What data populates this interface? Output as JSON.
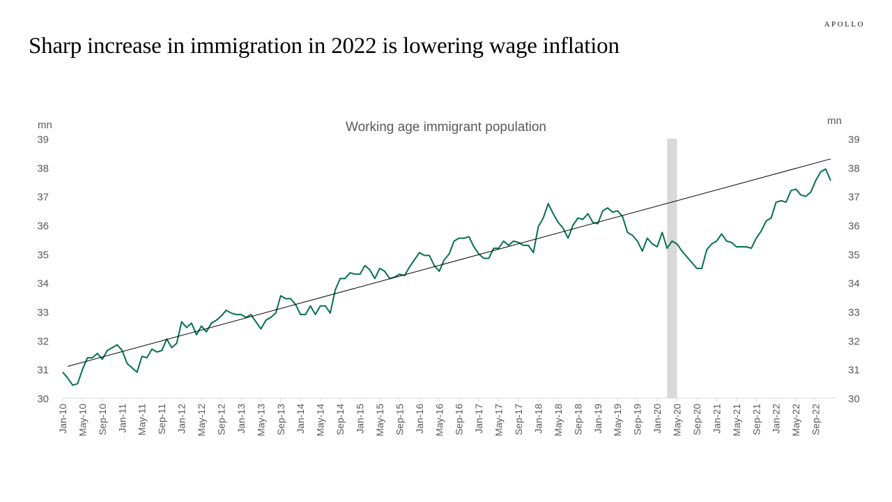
{
  "brand": "APOLLO",
  "headline": "Sharp increase in immigration in 2022 is lowering wage inflation",
  "colors": {
    "series": "#00704a",
    "trend": "#000000",
    "recession": "#d9d9d9",
    "axis_text": "#595959"
  },
  "chart_data": {
    "type": "line",
    "title": "Working age immigrant population",
    "y_unit_left": "mn",
    "y_unit_right": "mn",
    "ylim": [
      30,
      39
    ],
    "y_ticks": [
      30,
      31,
      32,
      33,
      34,
      35,
      36,
      37,
      38,
      39
    ],
    "x_range": [
      "Jan-10",
      "Jan-23"
    ],
    "x_ticks": [
      "Jan-10",
      "May-10",
      "Sep-10",
      "Jan-11",
      "May-11",
      "Sep-11",
      "Jan-12",
      "May-12",
      "Sep-12",
      "Jan-13",
      "May-13",
      "Sep-13",
      "Jan-14",
      "May-14",
      "Sep-14",
      "Jan-15",
      "May-15",
      "Sep-15",
      "Jan-16",
      "May-16",
      "Sep-16",
      "Jan-17",
      "May-17",
      "Sep-17",
      "Jan-18",
      "May-18",
      "Sep-18",
      "Jan-19",
      "May-19",
      "Sep-19",
      "Jan-20",
      "May-20",
      "Sep-20",
      "Jan-21",
      "May-21",
      "Sep-21",
      "Jan-22",
      "May-22",
      "Sep-22"
    ],
    "grid": false,
    "recession_shading": {
      "start": "Mar-20",
      "end": "Apr-20"
    },
    "series": [
      {
        "values": [
          30.9,
          30.7,
          30.45,
          30.5,
          31.0,
          31.4,
          31.4,
          31.55,
          31.35,
          31.65,
          31.75,
          31.85,
          31.65,
          31.2,
          31.05,
          30.9,
          31.45,
          31.4,
          31.7,
          31.6,
          31.65,
          32.05,
          31.75,
          31.9,
          32.65,
          32.45,
          32.6,
          32.2,
          32.5,
          32.3,
          32.6,
          32.7,
          32.85,
          33.05,
          32.95,
          32.9,
          32.9,
          32.8,
          32.9,
          32.65,
          32.4,
          32.7,
          32.8,
          32.95,
          33.55,
          33.45,
          33.45,
          33.25,
          32.9,
          32.9,
          33.2,
          32.9,
          33.2,
          33.2,
          32.95,
          33.75,
          34.15,
          34.15,
          34.35,
          34.3,
          34.3,
          34.6,
          34.45,
          34.15,
          34.5,
          34.4,
          34.15,
          34.2,
          34.3,
          34.25,
          34.55,
          34.8,
          35.05,
          34.95,
          34.95,
          34.6,
          34.4,
          34.8,
          35.0,
          35.45,
          35.55,
          35.55,
          35.6,
          35.25,
          35.0,
          34.85,
          34.85,
          35.2,
          35.2,
          35.45,
          35.3,
          35.45,
          35.4,
          35.3,
          35.3,
          35.05,
          35.95,
          36.25,
          36.75,
          36.4,
          36.1,
          35.9,
          35.55,
          36.0,
          36.25,
          36.2,
          36.4,
          36.1,
          36.05,
          36.5,
          36.6,
          36.45,
          36.5,
          36.3,
          35.75,
          35.65,
          35.45,
          35.1,
          35.55,
          35.35,
          35.25,
          35.75,
          35.2,
          35.45,
          35.35,
          35.1,
          34.9,
          34.7,
          34.5,
          34.5,
          35.15,
          35.35,
          35.45,
          35.7,
          35.45,
          35.4,
          35.25,
          35.25,
          35.25,
          35.2,
          35.55,
          35.8,
          36.15,
          36.25,
          36.8,
          36.85,
          36.8,
          37.2,
          37.25,
          37.05,
          37.0,
          37.15,
          37.55,
          37.85,
          37.95,
          37.55
        ]
      },
      {
        "values": [
          31.1,
          38.3
        ]
      }
    ]
  }
}
